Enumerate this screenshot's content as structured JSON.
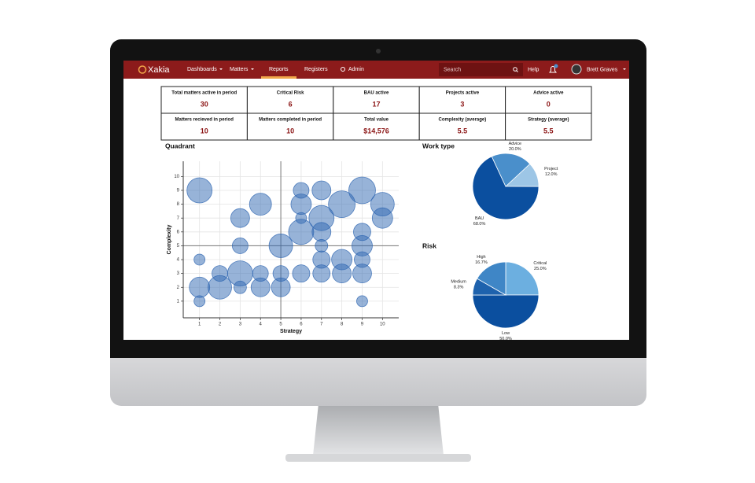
{
  "nav": {
    "brand": "Xakia",
    "items": [
      "Dashboards",
      "Matters",
      "Reports",
      "Registers",
      "Admin"
    ],
    "search": "Search",
    "help": "Help",
    "user": "Brett Graves"
  },
  "stats": [
    [
      {
        "label": "Total matters active in period",
        "value": 30
      },
      {
        "label": "Critical Risk",
        "value": 6
      },
      {
        "label": "BAU active",
        "value": 17
      },
      {
        "label": "Projects active",
        "value": 3
      },
      {
        "label": "Advice active",
        "value": 0
      }
    ],
    [
      {
        "label": "Matters recieved in period",
        "value": 10
      },
      {
        "label": "Matters completed in period",
        "value": 10
      },
      {
        "label": "Total value",
        "value": "$14,576"
      },
      {
        "label": "Complexity (average)",
        "value": 5.5
      },
      {
        "label": "Strategy (average)",
        "value": 5.5
      }
    ]
  ],
  "chart_data": [
    {
      "type": "bubble",
      "title": "Quadrant",
      "x_label": "Strategy",
      "y_label": "Complexity",
      "x": [
        1,
        1,
        1,
        1,
        2,
        2,
        3,
        3,
        3,
        3,
        4,
        4,
        4,
        5,
        5,
        5,
        6,
        6,
        6,
        6,
        6,
        7,
        7,
        7,
        7,
        7,
        7,
        8,
        8,
        8,
        9,
        9,
        9,
        9,
        9,
        9,
        10,
        10
      ],
      "values": [
        9,
        4,
        2,
        1,
        3,
        2,
        7,
        5,
        3,
        2,
        8,
        3,
        2,
        5,
        3,
        2,
        9,
        8,
        7,
        6,
        3,
        9,
        7,
        6,
        5,
        4,
        3,
        8,
        4,
        3,
        9,
        6,
        5,
        4,
        3,
        1,
        8,
        7
      ],
      "sizes": [
        16,
        7,
        13,
        7,
        10,
        15,
        12,
        10,
        16,
        8,
        14,
        10,
        12,
        15,
        10,
        12,
        10,
        13,
        7,
        16,
        11,
        12,
        16,
        12,
        8,
        11,
        11,
        17,
        13,
        12,
        17,
        11,
        13,
        10,
        12,
        7,
        15,
        13
      ],
      "color": "#2f67b1",
      "xlim": [
        0.2,
        10.8
      ],
      "ylim": [
        -0.2,
        11.1
      ],
      "xticks": [
        1,
        2,
        3,
        4,
        5,
        6,
        7,
        8,
        9,
        10
      ],
      "yticks": [
        1,
        2,
        3,
        4,
        5,
        6,
        7,
        8,
        9,
        10
      ],
      "divider_x": 5,
      "divider_y": 5,
      "grid": true
    },
    {
      "type": "pie",
      "title": "Work type",
      "categories": [
        "Project",
        "BAU",
        "Advice"
      ],
      "values": [
        12,
        68,
        20
      ],
      "value_labels": [
        "12.0%",
        "68.0%",
        "20.0%"
      ],
      "colors": [
        "#9dc6e6",
        "#0b4f9f",
        "#4a8fcb"
      ]
    },
    {
      "type": "pie",
      "title": "Risk",
      "categories": [
        "Critical",
        "Low",
        "Medium",
        "High"
      ],
      "values": [
        25,
        50,
        8.3,
        16.7
      ],
      "value_labels": [
        "25.0%",
        "50.0%",
        "8.3%",
        "16.7%"
      ],
      "colors": [
        "#6cafe0",
        "#0b4f9f",
        "#1e62ad",
        "#3f86c6"
      ]
    }
  ]
}
